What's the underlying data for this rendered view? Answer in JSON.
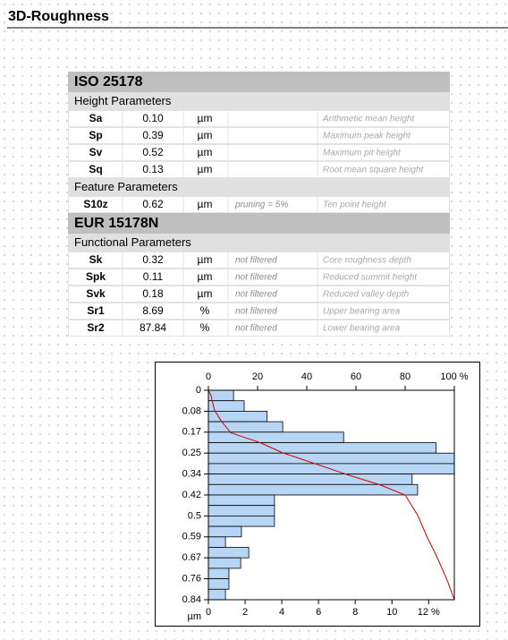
{
  "title": "3D-Roughness",
  "table": {
    "sections": [
      {
        "title": "ISO 25178",
        "groups": [
          {
            "title": "Height Parameters",
            "rows": [
              {
                "name": "Sa",
                "value": "0.10",
                "unit": "µm",
                "description": "Arithmetic mean height"
              },
              {
                "name": "Sp",
                "value": "0.39",
                "unit": "µm",
                "description": "Maximum peak height"
              },
              {
                "name": "Sv",
                "value": "0.52",
                "unit": "µm",
                "description": "Maximum pit height"
              },
              {
                "name": "Sq",
                "value": "0.13",
                "unit": "µm",
                "description": "Root mean square height"
              }
            ]
          },
          {
            "title": "Feature Parameters",
            "rows": [
              {
                "name": "S10z",
                "value": "0.62",
                "unit": "µm",
                "note": "pruning = 5%",
                "description": "Ten point height"
              }
            ]
          }
        ]
      },
      {
        "title": "EUR 15178N",
        "groups": [
          {
            "title": "Functional Parameters",
            "rows": [
              {
                "name": "Sk",
                "value": "0.32",
                "unit": "µm",
                "note": "not filtered",
                "description": "Core roughness depth"
              },
              {
                "name": "Spk",
                "value": "0.11",
                "unit": "µm",
                "note": "not filtered",
                "description": "Reduced summit height"
              },
              {
                "name": "Svk",
                "value": "0.18",
                "unit": "µm",
                "note": "not filtered",
                "description": "Reduced valley depth"
              },
              {
                "name": "Sr1",
                "value": "8.69",
                "unit": "%",
                "note": "not filtered",
                "description": "Upper bearing area"
              },
              {
                "name": "Sr2",
                "value": "87.84",
                "unit": "%",
                "note": "not filtered",
                "description": "Lower bearing area"
              }
            ]
          }
        ]
      }
    ]
  },
  "chart_data": {
    "type": "histogram",
    "bins": [
      0,
      0.042,
      0.084,
      0.126,
      0.168,
      0.21,
      0.252,
      0.294,
      0.336,
      0.378,
      0.42,
      0.462,
      0.504,
      0.546,
      0.588,
      0.63,
      0.672,
      0.714,
      0.756,
      0.798,
      0.84
    ],
    "values": [
      1.37,
      1.95,
      3.2,
      4.05,
      7.37,
      12.4,
      13.4,
      13.4,
      11.1,
      11.4,
      3.6,
      3.6,
      3.6,
      1.8,
      0.93,
      2.2,
      1.76,
      1.12,
      1.12,
      0.93
    ],
    "color": "#b7d5f4",
    "xlim": [
      0,
      13.4
    ],
    "xticks": [
      0,
      2,
      4,
      6,
      8,
      10,
      {
        "value": 12,
        "label": "12 %"
      }
    ],
    "ylim": [
      0,
      0.84
    ],
    "yticks": [
      0,
      {
        "value": 0.084,
        "label": "0.08"
      },
      {
        "value": 0.168,
        "label": "0.17"
      },
      {
        "value": 0.252,
        "label": "0.25"
      },
      {
        "value": 0.336,
        "label": "0.34"
      },
      0.42,
      {
        "value": 0.504,
        "label": "0.5"
      },
      {
        "value": 0.588,
        "label": "0.59"
      },
      {
        "value": 0.672,
        "label": "0.67"
      },
      {
        "value": 0.756,
        "label": "0.76"
      },
      0.84
    ],
    "y_label": "µm",
    "bearing_curve": {
      "color": "#d40000",
      "x": [
        0,
        1,
        2.5,
        5,
        9,
        15,
        21,
        30,
        42,
        57,
        70,
        80,
        85,
        89,
        93,
        97,
        100
      ],
      "y": [
        0,
        0.02,
        0.08,
        0.12,
        0.17,
        0.19,
        0.21,
        0.25,
        0.29,
        0.34,
        0.38,
        0.42,
        0.5,
        0.59,
        0.67,
        0.76,
        0.84
      ],
      "xlim": [
        0,
        100
      ],
      "xticks": [
        0,
        20,
        40,
        60,
        80,
        {
          "value": 100,
          "label": "100 %"
        }
      ]
    }
  }
}
